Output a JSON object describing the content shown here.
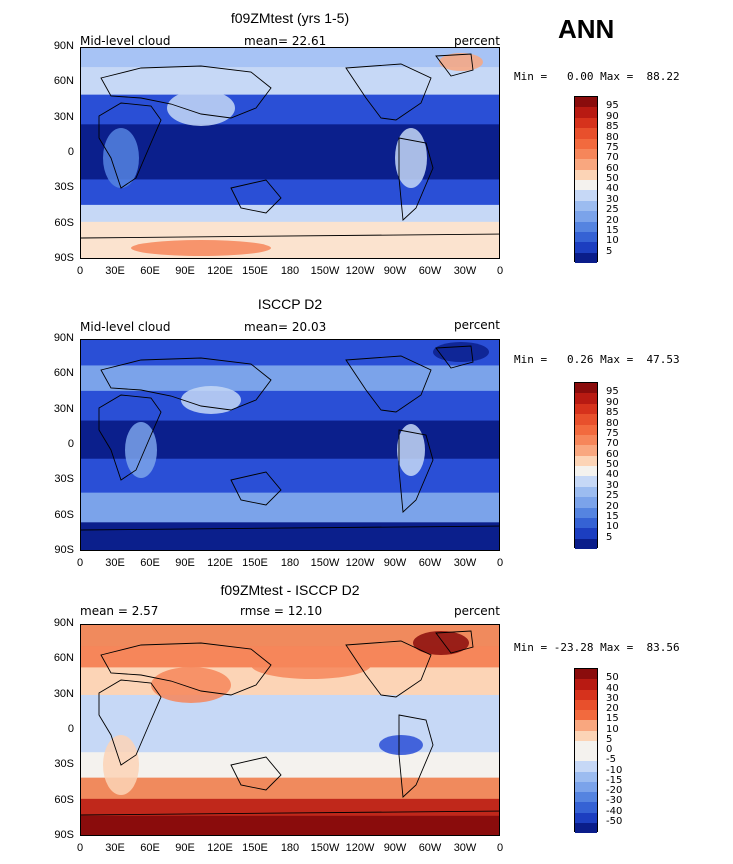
{
  "page_title": "ANN",
  "colors": {
    "deep_blue": "#0b1f8c",
    "mid_blue": "#2a4fd6",
    "light_blue": "#a7c3f5",
    "pale": "#fbe3cf",
    "orange": "#f08a5d",
    "red": "#c0281b",
    "dark_red": "#8a0c0c"
  },
  "x_ticks": [
    "0",
    "30E",
    "60E",
    "90E",
    "120E",
    "150E",
    "180",
    "150W",
    "120W",
    "90W",
    "60W",
    "30W",
    "0"
  ],
  "y_ticks": [
    "90N",
    "60N",
    "30N",
    "0",
    "30S",
    "60S",
    "90S"
  ],
  "panels": [
    {
      "title": "f09ZMtest (yrs 1-5)",
      "left_label": "Mid-level cloud",
      "mid_label": "mean=  22.61",
      "right_label": "percent",
      "minmax": "Min =   0.00 Max =  88.22",
      "colorbar_labels": [
        "95",
        "90",
        "85",
        "80",
        "75",
        "70",
        "60",
        "50",
        "40",
        "30",
        "25",
        "20",
        "15",
        "10",
        "5"
      ],
      "colorbar_colors": [
        "#8a0c0c",
        "#b81a12",
        "#d6321c",
        "#e8502c",
        "#f26a3e",
        "#f6865a",
        "#f9a77f",
        "#fcd4b6",
        "#f4f2ee",
        "#c6d8f6",
        "#9cbcf0",
        "#7ba3ea",
        "#5584e0",
        "#3562d4",
        "#1c3ec0",
        "#0a1d8a"
      ]
    },
    {
      "title": "ISCCP D2",
      "left_label": "Mid-level cloud",
      "mid_label": "mean=  20.03",
      "right_label": "percent",
      "minmax": "Min =   0.26 Max =  47.53",
      "colorbar_labels": [
        "95",
        "90",
        "85",
        "80",
        "75",
        "70",
        "60",
        "50",
        "40",
        "30",
        "25",
        "20",
        "15",
        "10",
        "5"
      ],
      "colorbar_colors": [
        "#8a0c0c",
        "#b81a12",
        "#d6321c",
        "#e8502c",
        "#f26a3e",
        "#f6865a",
        "#f9a77f",
        "#fcd4b6",
        "#f4f2ee",
        "#c6d8f6",
        "#9cbcf0",
        "#7ba3ea",
        "#5584e0",
        "#3562d4",
        "#1c3ec0",
        "#0a1d8a"
      ]
    },
    {
      "title": "f09ZMtest - ISCCP D2",
      "left_label": "mean =   2.57",
      "mid_label": "rmse =  12.10",
      "right_label": "percent",
      "minmax": "Min = -23.28 Max =  83.56",
      "colorbar_labels": [
        "50",
        "40",
        "30",
        "20",
        "15",
        "10",
        "5",
        "0",
        "-5",
        "-10",
        "-15",
        "-20",
        "-30",
        "-40",
        "-50"
      ],
      "colorbar_colors": [
        "#8a0c0c",
        "#b81a12",
        "#d6321c",
        "#e8502c",
        "#f26a3e",
        "#f9a77f",
        "#fcd4b6",
        "#f4f2ee",
        "#f4f2ee",
        "#c6d8f6",
        "#9cbcf0",
        "#7ba3ea",
        "#5584e0",
        "#3562d4",
        "#1c3ec0",
        "#0a1d8a"
      ]
    }
  ]
}
